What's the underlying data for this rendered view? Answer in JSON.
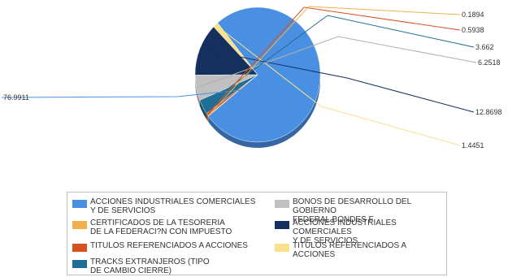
{
  "chart_data": {
    "type": "pie",
    "style": "3d",
    "slices": [
      {
        "label": "ACCIONES INDUSTRIALES COMERCIALES Y DE SERVICIOS",
        "value": 76.9911,
        "value_label": "76.9911",
        "color": "#4a90e2"
      },
      {
        "label": "TITULOS REFERENCIADOS A ACCIONES",
        "value": 1.4451,
        "value_label": "1.4451",
        "color": "#f8e08c"
      },
      {
        "label": "ACCIONES INDUSTRIALES COMERCIALES Y DE SERVICIOS",
        "value": 12.8698,
        "value_label": "12.8698",
        "color": "#15305e"
      },
      {
        "label": "BONOS DE DESARROLLO DEL GOBIERNO FEDERAL BONDES F",
        "value": 6.2518,
        "value_label": "6.2518",
        "color": "#c0c0c0"
      },
      {
        "label": "TRACKS EXTRANJEROS (TIPO DE CAMBIO CIERRE)",
        "value": 3.662,
        "value_label": "3.662",
        "color": "#1f6e95"
      },
      {
        "label": "TITULOS REFERENCIADOS A ACCIONES",
        "value": 0.5938,
        "value_label": "0.5938",
        "color": "#d9501f"
      },
      {
        "label": "CERTIFICADOS DE LA TESORERIA DE LA FEDERACI?N CON IMPUESTO",
        "value": 0.1894,
        "value_label": "0.1894",
        "color": "#f2b04a"
      }
    ],
    "legend": {
      "placement": "bottom",
      "entries": [
        {
          "label": "ACCIONES INDUSTRIALES COMERCIALES\nY DE SERVICIOS",
          "color": "#4a90e2"
        },
        {
          "label": "BONOS DE DESARROLLO DEL GOBIERNO\nFEDERAL BONDES F",
          "color": "#c0c0c0"
        },
        {
          "label": "CERTIFICADOS DE LA TESORERIA\nDE LA FEDERACI?N CON IMPUESTO",
          "color": "#f2b04a"
        },
        {
          "label": "ACCIONES INDUSTRIALES COMERCIALES\nY DE SERVICIOS",
          "color": "#15305e"
        },
        {
          "label": "TITULOS REFERENCIADOS A ACCIONES",
          "color": "#d9501f"
        },
        {
          "label": "TITULOS REFERENCIADOS A ACCIONES",
          "color": "#f8e08c"
        },
        {
          "label": "TRACKS EXTRANJEROS (TIPO\nDE CAMBIO CIERRE)",
          "color": "#1f6e95"
        }
      ]
    }
  }
}
